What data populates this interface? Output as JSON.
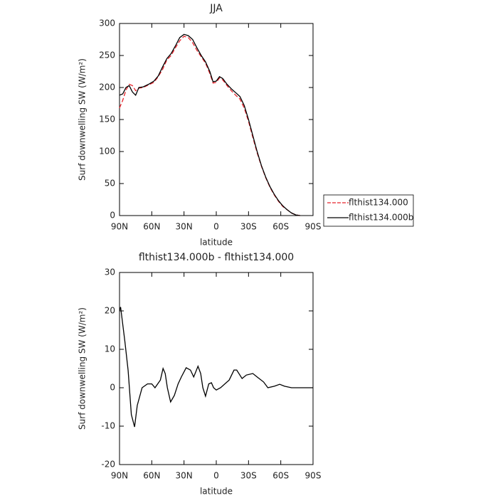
{
  "chart_data": [
    {
      "type": "line",
      "title": "JJA",
      "xlabel": "latitude",
      "ylabel": "Surf downwelling SW (W/m²)",
      "xlim": [
        90,
        -90
      ],
      "xticks": [
        {
          "value": 90,
          "label": "90N"
        },
        {
          "value": 60,
          "label": "60N"
        },
        {
          "value": 30,
          "label": "30N"
        },
        0,
        {
          "value": -30,
          "label": "30S"
        },
        {
          "value": -60,
          "label": "60S"
        },
        {
          "value": -90,
          "label": "90S"
        }
      ],
      "ylim": [
        0,
        300
      ],
      "yticks": [
        0,
        50,
        100,
        150,
        200,
        250,
        300
      ],
      "legend": "right",
      "x": [
        90,
        87,
        84,
        81,
        78,
        75,
        72,
        68,
        63,
        58,
        54,
        50,
        46,
        42,
        38,
        34,
        30,
        26,
        22,
        18,
        14,
        10,
        6,
        3,
        0,
        -3,
        -6,
        -10,
        -14,
        -18,
        -22,
        -26,
        -30,
        -34,
        -38,
        -42,
        -46,
        -50,
        -54,
        -58,
        -62,
        -66,
        -70,
        -74,
        -78
      ],
      "series": [
        {
          "name": "flthist134.000",
          "color": "#e8242c",
          "line_style": "dashed",
          "values": [
            168,
            180,
            196,
            205,
            203,
            195,
            199,
            200,
            204,
            208,
            217,
            228,
            243,
            250,
            262,
            273,
            280,
            278,
            270,
            258,
            248,
            238,
            222,
            207,
            208,
            215,
            212,
            203,
            195,
            188,
            182,
            168,
            147,
            122,
            98,
            77,
            59,
            44,
            32,
            22,
            14,
            9,
            4,
            1,
            0
          ]
        },
        {
          "name": "flthist134.000b",
          "color": "#000000",
          "line_style": "solid",
          "values": [
            188,
            190,
            200,
            203,
            193,
            188,
            200,
            201,
            205,
            210,
            218,
            232,
            245,
            253,
            265,
            278,
            283,
            281,
            275,
            262,
            250,
            240,
            225,
            209,
            210,
            217,
            214,
            205,
            198,
            192,
            186,
            172,
            150,
            125,
            100,
            78,
            60,
            45,
            33,
            23,
            15,
            9,
            4,
            1,
            0
          ]
        }
      ]
    },
    {
      "type": "line",
      "title": "flthist134.000b - flthist134.000",
      "xlabel": "latitude",
      "ylabel": "Surf downwelling SW (W/m²)",
      "xlim": [
        90,
        -90
      ],
      "xticks": [
        {
          "value": 90,
          "label": "90N"
        },
        {
          "value": 60,
          "label": "60N"
        },
        {
          "value": 30,
          "label": "30N"
        },
        0,
        {
          "value": -30,
          "label": "30S"
        },
        {
          "value": -60,
          "label": "60S"
        },
        {
          "value": -90,
          "label": "90S"
        }
      ],
      "ylim": [
        -20,
        30
      ],
      "yticks": [
        -20,
        -10,
        0,
        10,
        20,
        30
      ],
      "x": [
        90,
        89,
        85,
        82,
        79,
        76,
        73.5,
        69,
        64,
        60,
        57,
        52,
        49.5,
        47.5,
        45.5,
        42.5,
        39,
        35.5,
        32.5,
        28,
        24,
        21,
        17,
        14.5,
        12.5,
        10,
        7,
        4.5,
        2.5,
        0,
        -4,
        -12,
        -16.5,
        -19,
        -24,
        -28,
        -34,
        -38,
        -44,
        -48,
        -54,
        -59,
        -63.5,
        -70,
        -90
      ],
      "series": [
        {
          "color": "#000000",
          "line_style": "solid",
          "values": [
            20,
            21,
            12,
            4.5,
            -7,
            -10.2,
            -4.6,
            0,
            1,
            1,
            0,
            2,
            5,
            3.7,
            0,
            -3.7,
            -2,
            1,
            2.8,
            5.2,
            4.6,
            2.8,
            5.6,
            3.7,
            0,
            -2.2,
            1,
            1.3,
            0,
            -0.6,
            0,
            2,
            4.6,
            4.6,
            2.4,
            3.3,
            3.7,
            2.8,
            1.5,
            0,
            0.4,
            0.9,
            0.4,
            0,
            0
          ]
        }
      ]
    }
  ]
}
